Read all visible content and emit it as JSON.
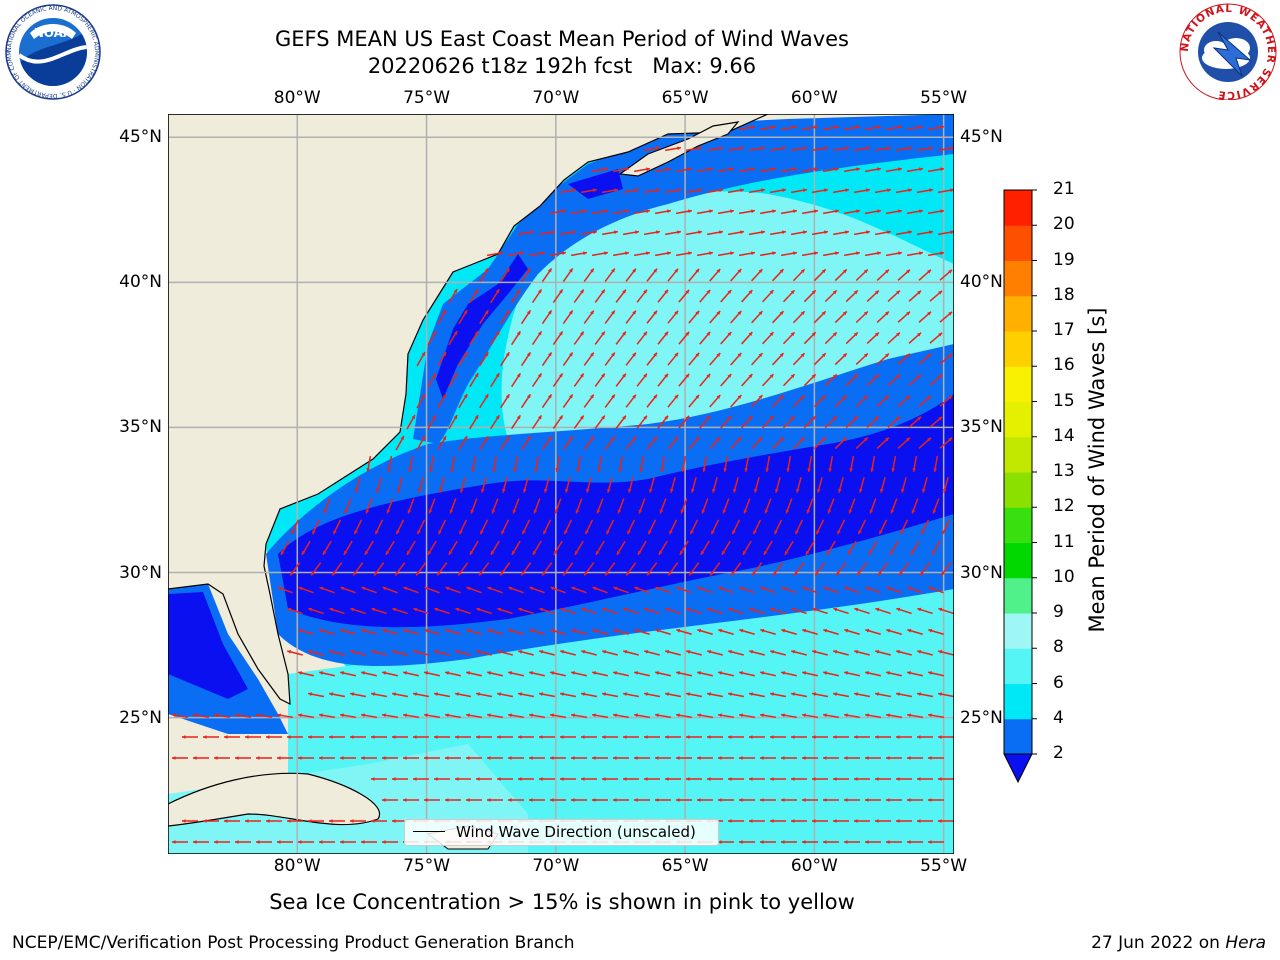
{
  "title": {
    "line1": "GEFS MEAN US East Coast Mean Period of Wind Waves",
    "line2": "20220626 t18z 192h fcst   Max: 9.66"
  },
  "map": {
    "lon_ticks": [
      "80°W",
      "75°W",
      "70°W",
      "65°W",
      "60°W",
      "55°W"
    ],
    "lat_ticks": [
      "45°N",
      "40°N",
      "35°N",
      "30°N",
      "25°N"
    ],
    "lon_range": [
      -85,
      -54.6
    ],
    "lat_range": [
      20.3,
      45.8
    ],
    "land_color": "#efecdc",
    "grid": true,
    "legend_text": "Wind Wave Direction (unscaled)",
    "legend_position": "bottom-center",
    "arrow_color": "#e8231b"
  },
  "colorbar": {
    "label": "Mean Period of Wind Waves [s]",
    "ticks": [
      "2",
      "4",
      "6",
      "8",
      "9",
      "10",
      "11",
      "12",
      "13",
      "14",
      "15",
      "16",
      "17",
      "18",
      "19",
      "20",
      "21"
    ],
    "colors": [
      "#0a6ef5",
      "#00e8f5",
      "#55f5f5",
      "#9ff7f5",
      "#50f08a",
      "#00d800",
      "#38e010",
      "#8ce000",
      "#c3e800",
      "#e4f000",
      "#f8f200",
      "#ffd000",
      "#ffb000",
      "#ff8000",
      "#ff5000",
      "#ff2000"
    ],
    "under_color": "#0a10f0"
  },
  "chart_data": {
    "type": "heatmap",
    "title": "GEFS MEAN US East Coast Mean Period of Wind Waves",
    "subtitle": "20220626 t18z 192h fcst   Max: 9.66",
    "variable": "Mean Period of Wind Waves [s]",
    "max": 9.66,
    "levels": [
      2,
      4,
      6,
      8,
      9,
      10,
      11,
      12,
      13,
      14,
      15,
      16,
      17,
      18,
      19,
      20,
      21
    ],
    "xlabel": "",
    "ylabel": ""
  },
  "subtitle": "Sea Ice Concentration > 15% is shown in pink to yellow",
  "footer": {
    "left": "NCEP/EMC/Verification Post Processing Product Generation Branch",
    "right_prefix": "27 Jun 2022 on ",
    "right_host": "Hera"
  },
  "logos": {
    "noaa": "NOAA",
    "noaa_ring": "NATIONAL OCEANIC AND ATMOSPHERIC ADMINISTRATION · U.S. DEPARTMENT OF COMMERCE",
    "nws_ring": "NATIONAL WEATHER SERVICE"
  }
}
